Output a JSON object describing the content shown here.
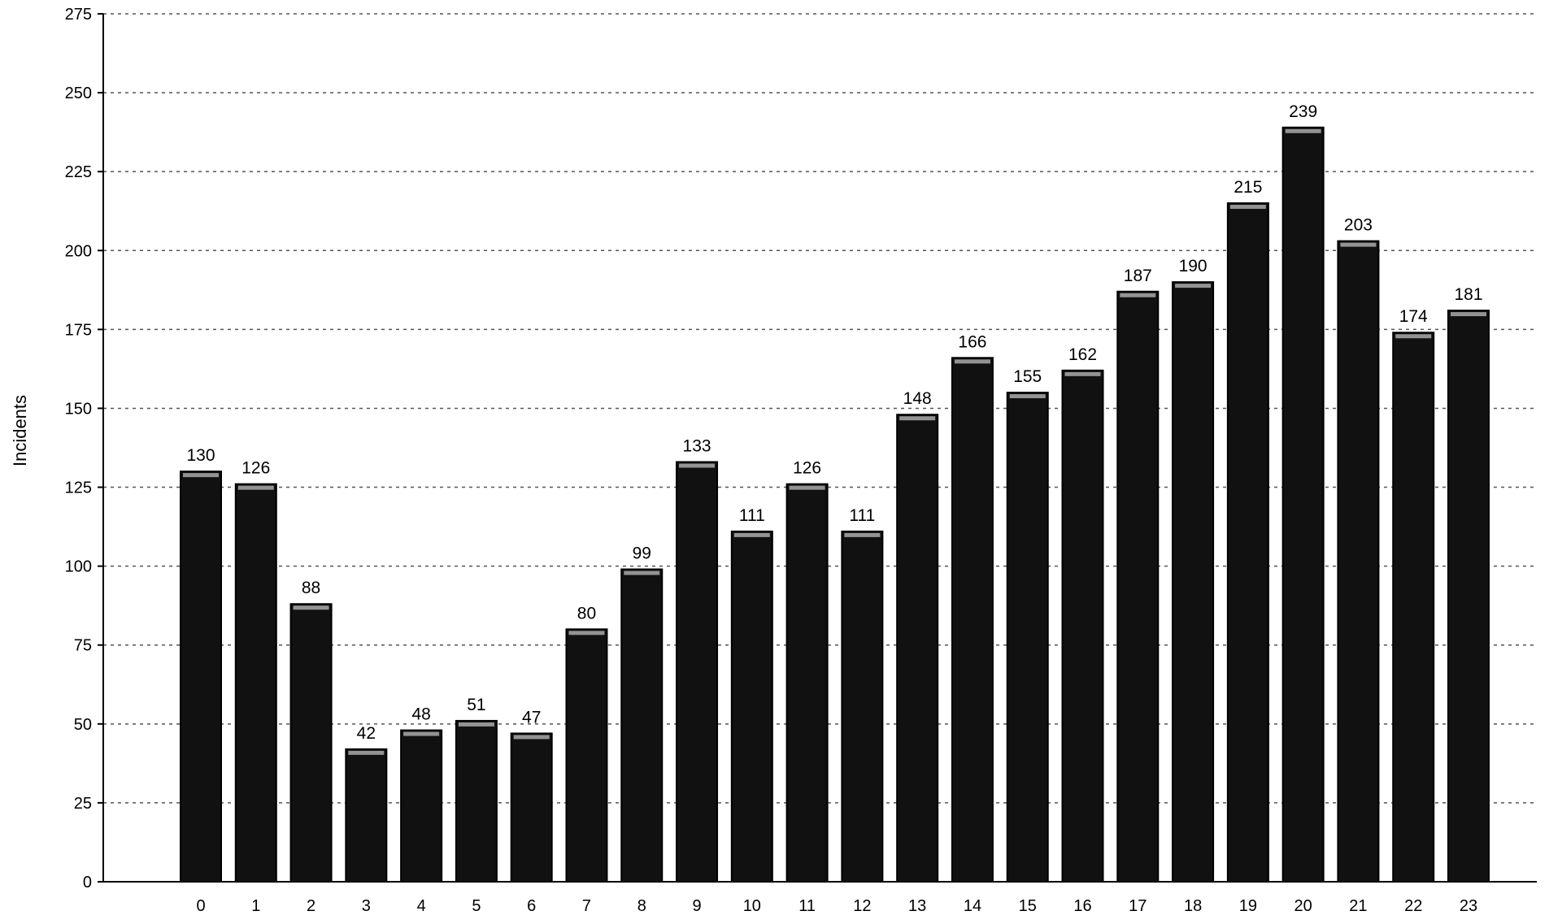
{
  "chart_data": {
    "type": "bar",
    "xlabel": "",
    "ylabel": "Incidents",
    "ylim": [
      0,
      275
    ],
    "yticks": [
      0,
      25,
      50,
      75,
      100,
      125,
      150,
      175,
      200,
      225,
      250,
      275
    ],
    "grid": true,
    "categories": [
      "0",
      "1",
      "2",
      "3",
      "4",
      "5",
      "6",
      "7",
      "8",
      "9",
      "10",
      "11",
      "12",
      "13",
      "14",
      "15",
      "16",
      "17",
      "18",
      "19",
      "20",
      "21",
      "22",
      "23"
    ],
    "values": [
      130,
      126,
      88,
      42,
      48,
      51,
      47,
      80,
      99,
      133,
      111,
      126,
      111,
      148,
      166,
      155,
      162,
      187,
      190,
      215,
      239,
      203,
      174,
      181
    ],
    "bar_color": "#111111",
    "gridline_color": "#555555"
  }
}
